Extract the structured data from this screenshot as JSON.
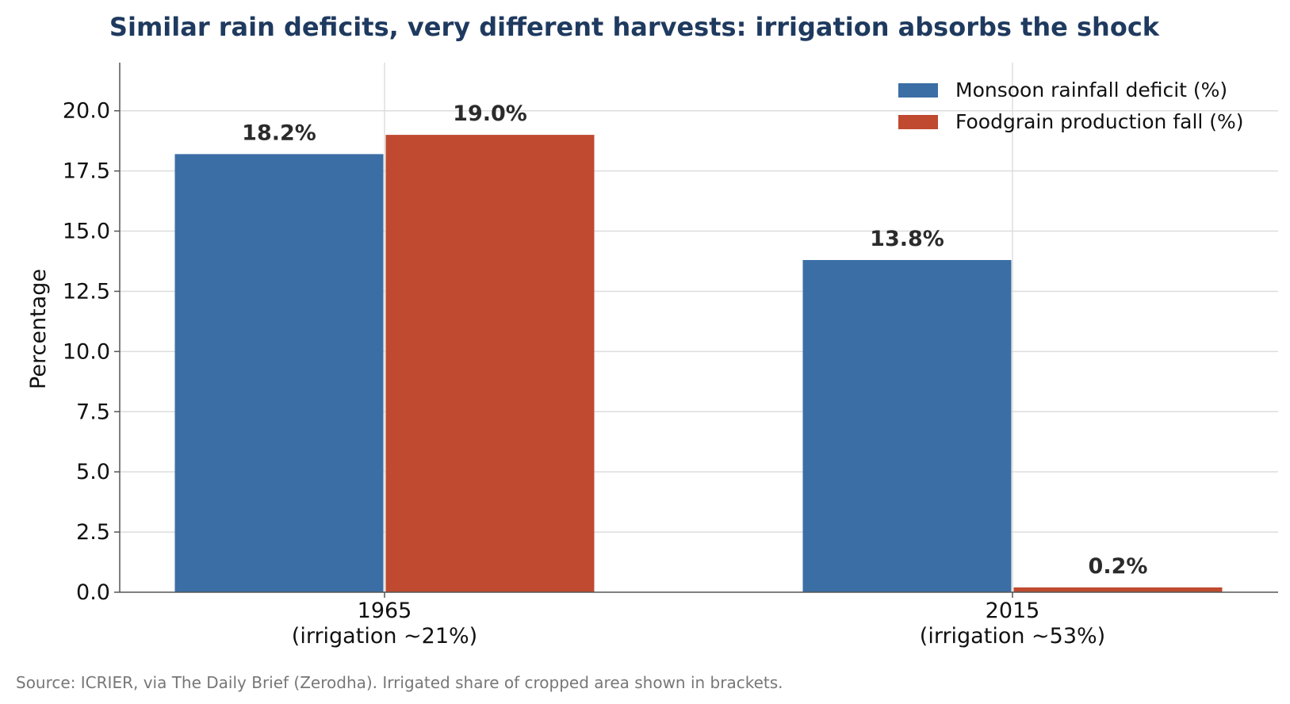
{
  "chart_data": {
    "type": "bar",
    "title": "Similar rain deficits, very different harvests: irrigation absorbs the shock",
    "xlabel": "",
    "ylabel": "Percentage",
    "categories": [
      "1965\n(irrigation ~21%)",
      "2015\n(irrigation ~53%)"
    ],
    "series": [
      {
        "name": "Monsoon rainfall deficit (%)",
        "color": "#3b6ea5",
        "values": [
          18.2,
          13.8
        ],
        "labels": [
          "18.2%",
          "13.8%"
        ]
      },
      {
        "name": "Foodgrain production fall (%)",
        "color": "#bf4a30",
        "values": [
          19.0,
          0.2
        ],
        "labels": [
          "19.0%",
          "0.2%"
        ]
      }
    ],
    "ylim": [
      0,
      22
    ],
    "yticks": [
      "0.0",
      "2.5",
      "5.0",
      "7.5",
      "10.0",
      "12.5",
      "15.0",
      "17.5",
      "20.0"
    ],
    "ytick_values": [
      0,
      2.5,
      5,
      7.5,
      10,
      12.5,
      15,
      17.5,
      20
    ],
    "grid": true,
    "legend_position": "top-right",
    "source": "Source: ICRIER, via The Daily Brief (Zerodha). Irrigated share of cropped area shown in brackets."
  }
}
